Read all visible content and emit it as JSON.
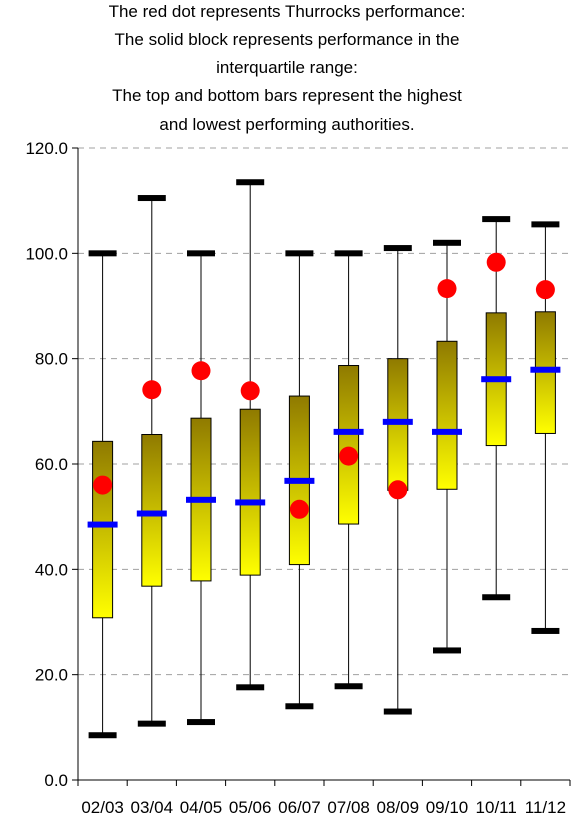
{
  "chart_data": {
    "type": "boxplot",
    "title_lines": [
      "The red dot represents Thurrocks performance:",
      "The solid block represents performance in the",
      "interquartile range:",
      "The top and bottom bars represent the highest",
      "and lowest performing authorities."
    ],
    "categories": [
      "02/03",
      "03/04",
      "04/05",
      "05/06",
      "06/07",
      "07/08",
      "08/09",
      "09/10",
      "10/11",
      "11/12"
    ],
    "max": [
      100.0,
      110.5,
      100.0,
      113.5,
      100.0,
      100.0,
      101.0,
      102.0,
      106.5,
      105.5
    ],
    "q3": [
      64.3,
      65.6,
      68.7,
      70.4,
      72.9,
      78.7,
      80.0,
      83.3,
      88.7,
      88.9
    ],
    "median": [
      48.5,
      50.6,
      53.2,
      52.7,
      56.8,
      66.1,
      68.0,
      66.1,
      76.1,
      77.9
    ],
    "q1": [
      30.8,
      36.8,
      37.8,
      38.9,
      40.9,
      48.6,
      55.0,
      55.2,
      63.5,
      65.8
    ],
    "min": [
      8.5,
      10.7,
      11.0,
      17.6,
      14.0,
      17.8,
      13.0,
      24.6,
      34.7,
      28.3
    ],
    "thurrock": [
      56.0,
      74.1,
      77.7,
      73.9,
      51.4,
      61.5,
      55.1,
      93.3,
      98.3,
      93.1
    ],
    "ylim": [
      0,
      120
    ],
    "yticks": [
      "0.0",
      "20.0",
      "40.0",
      "60.0",
      "80.0",
      "100.0",
      "120.0"
    ],
    "grid": true,
    "colors": {
      "box_top": "#8f7a00",
      "box_bottom": "#ffff00",
      "median": "#0000ff",
      "thurrock": "#ff0000",
      "whisker": "#000000",
      "grid": "#a0a0a0"
    }
  }
}
